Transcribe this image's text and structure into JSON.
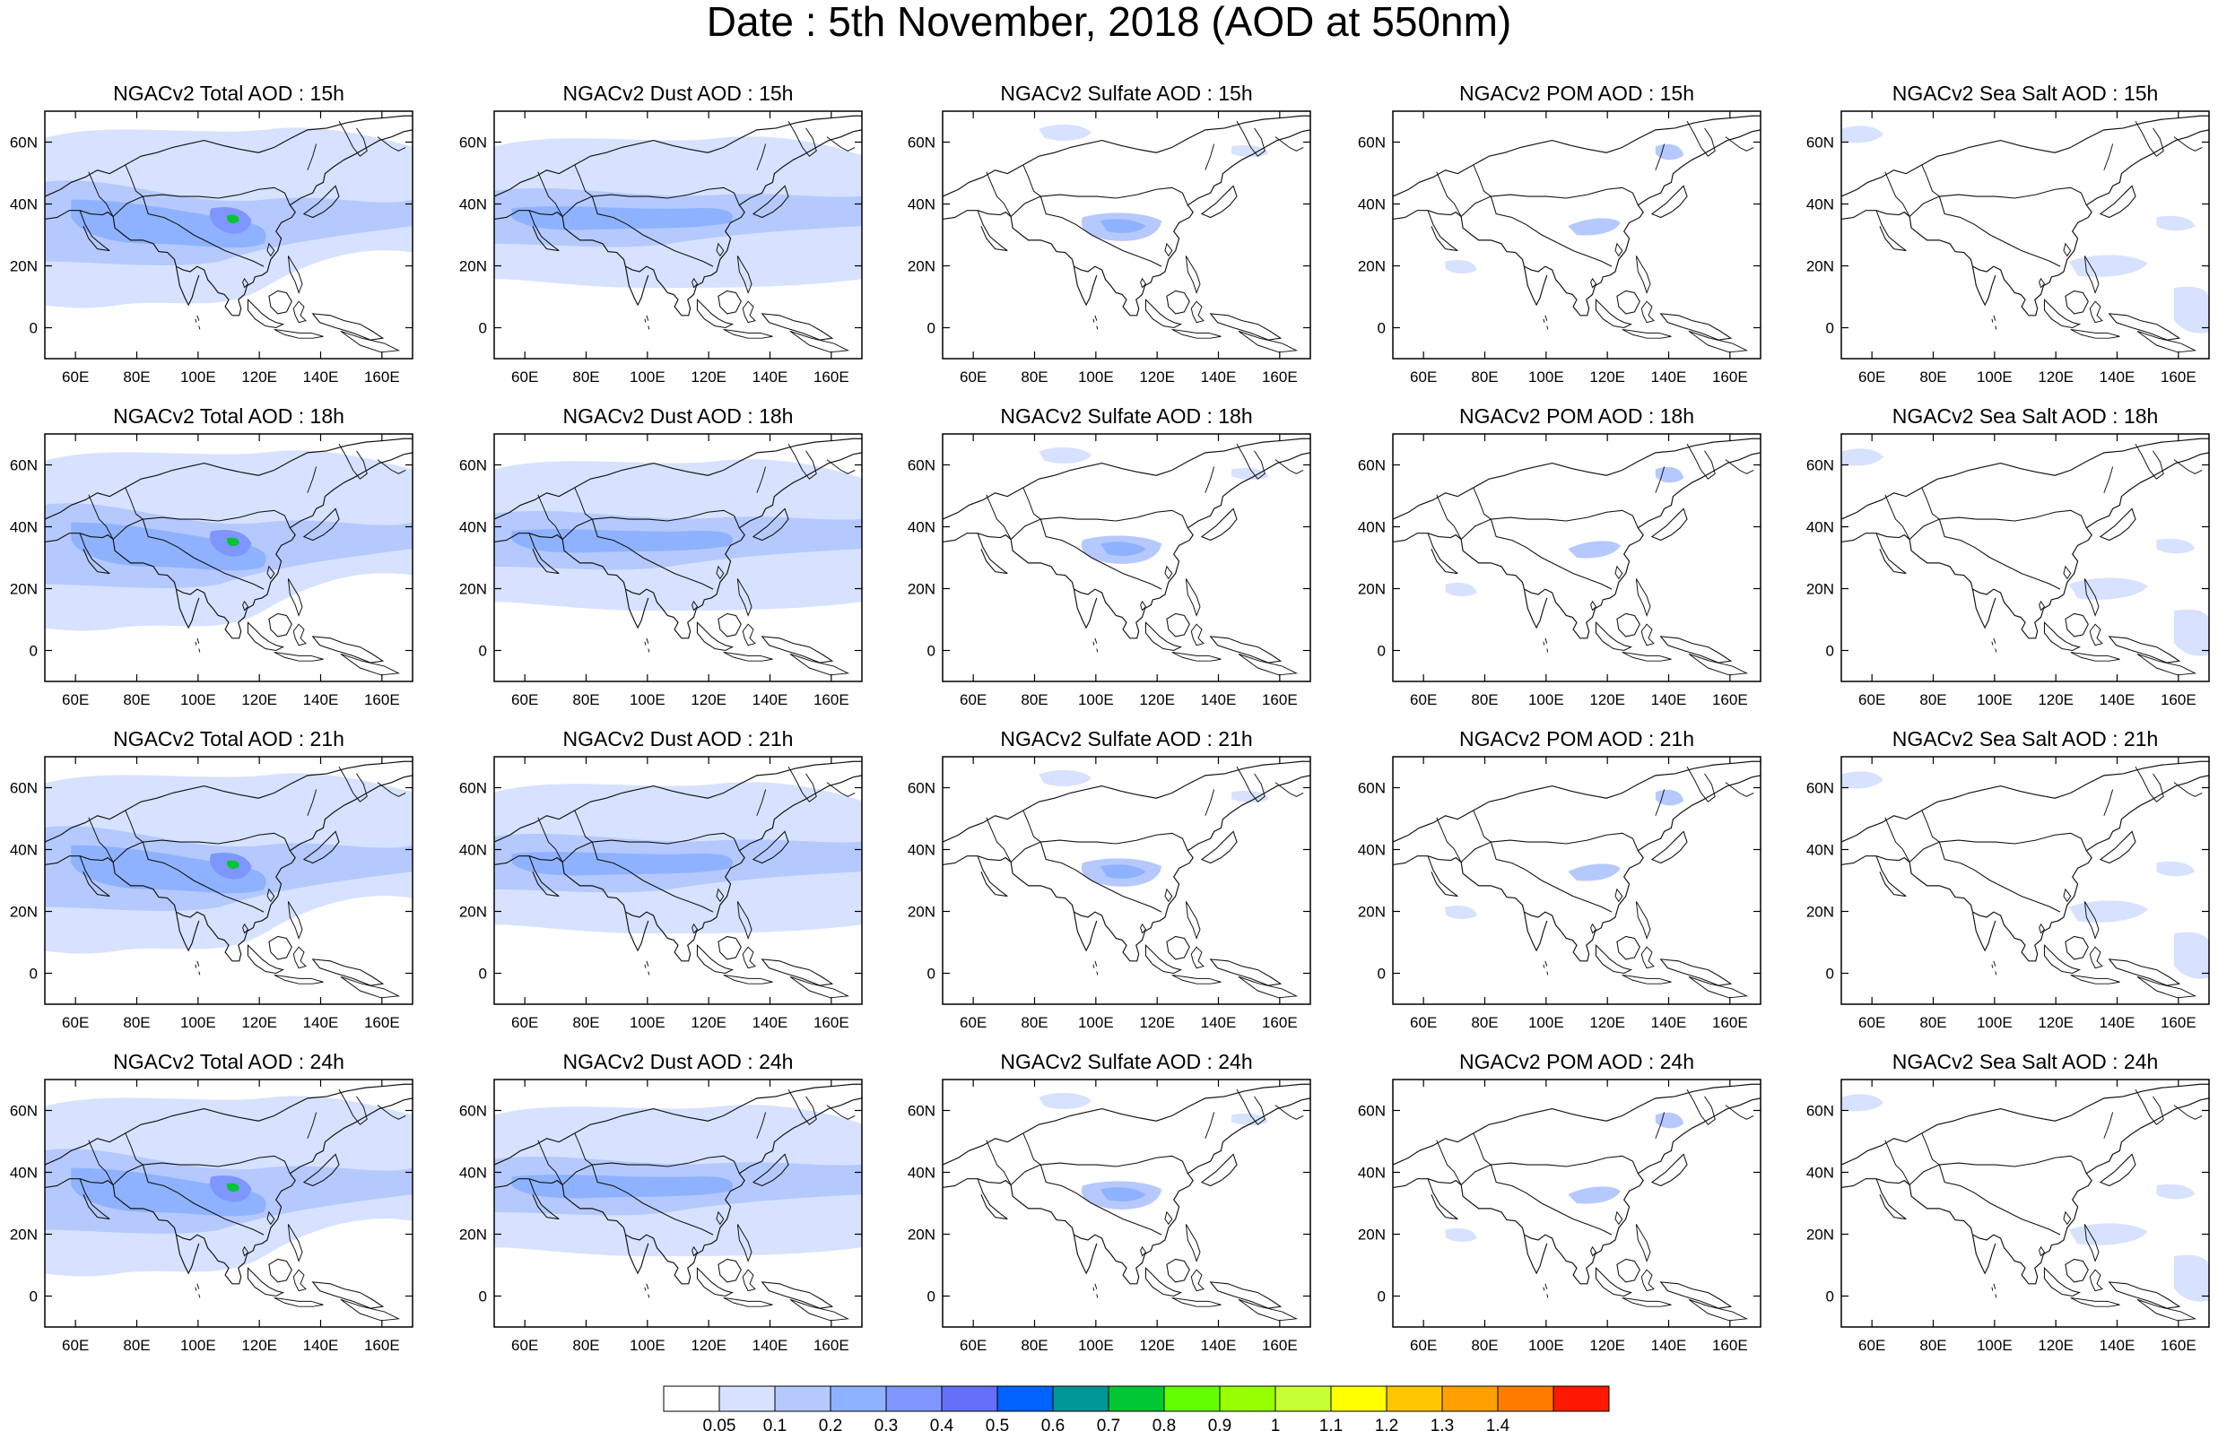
{
  "figure": {
    "title": "Date : 5th November, 2018 (AOD at 550nm)"
  },
  "axes": {
    "lon_ticks": [
      "60E",
      "80E",
      "100E",
      "120E",
      "140E",
      "160E"
    ],
    "lat_ticks": [
      "60N",
      "40N",
      "20N",
      "0"
    ]
  },
  "panels": [
    {
      "title": "NGACv2 Total AOD : 15h",
      "species": "total",
      "hour": "15h"
    },
    {
      "title": "NGACv2 Dust AOD : 15h",
      "species": "dust",
      "hour": "15h"
    },
    {
      "title": "NGACv2 Sulfate AOD : 15h",
      "species": "sulfate",
      "hour": "15h"
    },
    {
      "title": "NGACv2 POM AOD : 15h",
      "species": "pom",
      "hour": "15h"
    },
    {
      "title": "NGACv2 Sea Salt AOD : 15h",
      "species": "seasalt",
      "hour": "15h"
    },
    {
      "title": "NGACv2 Total AOD : 18h",
      "species": "total",
      "hour": "18h"
    },
    {
      "title": "NGACv2 Dust AOD : 18h",
      "species": "dust",
      "hour": "18h"
    },
    {
      "title": "NGACv2 Sulfate AOD : 18h",
      "species": "sulfate",
      "hour": "18h"
    },
    {
      "title": "NGACv2 POM AOD : 18h",
      "species": "pom",
      "hour": "18h"
    },
    {
      "title": "NGACv2 Sea Salt AOD : 18h",
      "species": "seasalt",
      "hour": "18h"
    },
    {
      "title": "NGACv2 Total AOD : 21h",
      "species": "total",
      "hour": "21h"
    },
    {
      "title": "NGACv2 Dust AOD : 21h",
      "species": "dust",
      "hour": "21h"
    },
    {
      "title": "NGACv2 Sulfate AOD : 21h",
      "species": "sulfate",
      "hour": "21h"
    },
    {
      "title": "NGACv2 POM AOD : 21h",
      "species": "pom",
      "hour": "21h"
    },
    {
      "title": "NGACv2 Sea Salt AOD : 21h",
      "species": "seasalt",
      "hour": "21h"
    },
    {
      "title": "NGACv2 Total AOD : 24h",
      "species": "total",
      "hour": "24h"
    },
    {
      "title": "NGACv2 Dust AOD : 24h",
      "species": "dust",
      "hour": "24h"
    },
    {
      "title": "NGACv2 Sulfate AOD : 24h",
      "species": "sulfate",
      "hour": "24h"
    },
    {
      "title": "NGACv2 POM AOD : 24h",
      "species": "pom",
      "hour": "24h"
    },
    {
      "title": "NGACv2 Sea Salt  AOD : 24h",
      "species": "seasalt",
      "hour": "24h"
    }
  ],
  "colorbar": {
    "labels": [
      "0.05",
      "0.1",
      "0.2",
      "0.3",
      "0.4",
      "0.5",
      "0.6",
      "0.7",
      "0.8",
      "0.9",
      "1",
      "1.1",
      "1.2",
      "1.3",
      "1.4"
    ],
    "colors": [
      "#ffffff",
      "#d6e2ff",
      "#b5c9ff",
      "#8eb2ff",
      "#7f96ff",
      "#6370f8",
      "#0063ff",
      "#009696",
      "#00c633",
      "#63ff00",
      "#96ff00",
      "#c6ff33",
      "#ffff00",
      "#ffc600",
      "#ffa000",
      "#ff7c00",
      "#ff1900"
    ]
  }
}
